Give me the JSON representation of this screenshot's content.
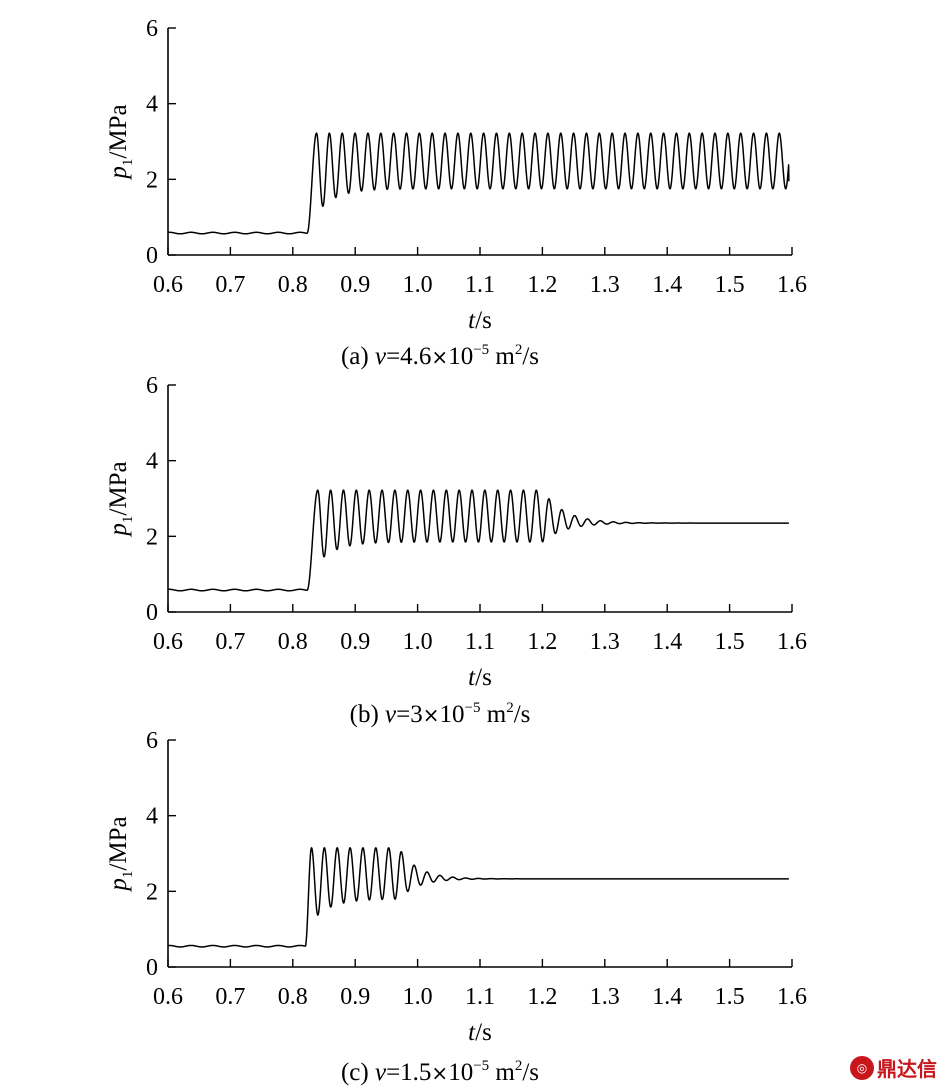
{
  "watermark": {
    "text": "鼎达信",
    "icon": "logo-icon",
    "color": "#c8161d"
  },
  "chart_data": [
    {
      "type": "line",
      "panel": "(a)",
      "caption": {
        "prefix": "(a) ",
        "var": "v",
        "value": "=4.6",
        "times": "×",
        "base": "10",
        "exp": "−5",
        "unit": " m",
        "unit_exp": "2",
        "unit_tail": "/s"
      },
      "xlabel": {
        "var": "t",
        "unit": "/s"
      },
      "ylabel": {
        "var": "p",
        "sub": "1",
        "unit": "/MPa"
      },
      "xlim": [
        0.6,
        1.6
      ],
      "ylim": [
        0,
        6
      ],
      "xticks": [
        "0.6",
        "0.7",
        "0.8",
        "0.9",
        "1.0",
        "1.1",
        "1.2",
        "1.3",
        "1.4",
        "1.5",
        "1.6"
      ],
      "yticks": [
        "0",
        "2",
        "4",
        "6"
      ],
      "series": [
        {
          "color": "#000000",
          "baseline": 0.58,
          "rise_start": 0.823,
          "rise_end": 0.838,
          "peak": 3.22,
          "first_trough": 1.1,
          "trough_settled": 1.75,
          "trough_settle_tau": 0.03,
          "period": 0.0206,
          "decay_start": null,
          "decay_tau": null,
          "steady": 2.48,
          "end_value": 1.95
        }
      ]
    },
    {
      "type": "line",
      "panel": "(b)",
      "caption": {
        "prefix": "(b) ",
        "var": "v",
        "value": "=3",
        "times": "×",
        "base": "10",
        "exp": "−5",
        "unit": " m",
        "unit_exp": "2",
        "unit_tail": "/s"
      },
      "xlabel": {
        "var": "t",
        "unit": "/s"
      },
      "ylabel": {
        "var": "p",
        "sub": "1",
        "unit": "/MPa"
      },
      "xlim": [
        0.6,
        1.6
      ],
      "ylim": [
        0,
        6
      ],
      "xticks": [
        "0.6",
        "0.7",
        "0.8",
        "0.9",
        "1.0",
        "1.1",
        "1.2",
        "1.3",
        "1.4",
        "1.5",
        "1.6"
      ],
      "yticks": [
        "0",
        "2",
        "4",
        "6"
      ],
      "series": [
        {
          "color": "#000000",
          "baseline": 0.58,
          "rise_start": 0.823,
          "rise_end": 0.84,
          "peak": 3.22,
          "first_trough": 1.3,
          "trough_settled": 1.85,
          "trough_settle_tau": 0.03,
          "period": 0.0206,
          "decay_start": 1.2,
          "decay_tau": 0.035,
          "steady": 2.35,
          "end_value": 2.35
        }
      ]
    },
    {
      "type": "line",
      "panel": "(c)",
      "caption": {
        "prefix": "(c) ",
        "var": "v",
        "value": "=1.5",
        "times": "×",
        "base": "10",
        "exp": "−5",
        "unit": " m",
        "unit_exp": "2",
        "unit_tail": "/s"
      },
      "xlabel": {
        "var": "t",
        "unit": "/s"
      },
      "ylabel": {
        "var": "p",
        "sub": "1",
        "unit": "/MPa"
      },
      "xlim": [
        0.6,
        1.6
      ],
      "ylim": [
        0,
        6
      ],
      "xticks": [
        "0.6",
        "0.7",
        "0.8",
        "0.9",
        "1.0",
        "1.1",
        "1.2",
        "1.3",
        "1.4",
        "1.5",
        "1.6"
      ],
      "yticks": [
        "0",
        "2",
        "4",
        "6"
      ],
      "series": [
        {
          "color": "#000000",
          "baseline": 0.55,
          "rise_start": 0.82,
          "rise_end": 0.83,
          "peak": 3.15,
          "first_trough": 1.2,
          "trough_settled": 1.8,
          "trough_settle_tau": 0.03,
          "period": 0.0206,
          "decay_start": 0.97,
          "decay_tau": 0.03,
          "steady": 2.33,
          "end_value": 2.33
        }
      ]
    }
  ]
}
